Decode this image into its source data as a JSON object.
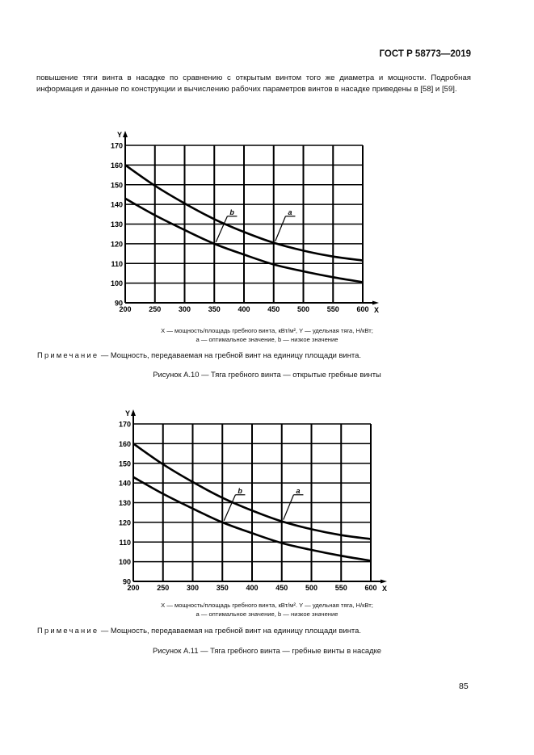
{
  "header": {
    "doc_code": "ГОСТ Р 58773—2019"
  },
  "body": {
    "paragraph": "повышение тяги винта в насадке по сравнению с открытым винтом того же диаметра и мощности. Подробная информация и данные по конструкции и вычислению рабочих параметров винтов в насадке приведены в [58] и [59]."
  },
  "figures": [
    {
      "legend_line1": "X — мощность/площадь гребного винта, кВт/м², Y — удельная тяга, Н/кВт;",
      "legend_line2": "a — оптимальное значение, b — низкое значение",
      "note_label": "Примечание",
      "note_text": " — Мощность, передаваемая на гребной винт на единицу площади винта.",
      "caption": "Рисунок А.10 — Тяга гребного винта — открытые гребные винты"
    },
    {
      "legend_line1": "X — мощность/площадь гребного винта, кВт/м². Y — удельная тяга, Н/кВт;",
      "legend_line2": "a — оптимальное значение, b — низкое значение",
      "note_label": "Примечание",
      "note_text": " — Мощность, передаваемая на гребной винт на единицу площади винта.",
      "caption": "Рисунок А.11 — Тяга гребного винта — гребные винты в насадке"
    }
  ],
  "chart_data": [
    {
      "type": "line",
      "xlabel": "X",
      "ylabel": "Y",
      "xlim": [
        200,
        600
      ],
      "ylim": [
        90,
        170
      ],
      "grid": true,
      "x_ticks": [
        "200",
        "250",
        "300",
        "350",
        "400",
        "450",
        "500",
        "550",
        "600"
      ],
      "y_ticks": [
        "90",
        "100",
        "110",
        "120",
        "130",
        "140",
        "150",
        "160",
        "170"
      ],
      "x": [
        200,
        250,
        300,
        350,
        400,
        450,
        500,
        550,
        600
      ],
      "series": [
        {
          "name": "a",
          "values": [
            160,
            149.5,
            140.5,
            132.5,
            126,
            120.5,
            116.5,
            113.5,
            111.5
          ]
        },
        {
          "name": "b",
          "values": [
            143,
            134.5,
            127,
            120,
            114.5,
            109.5,
            106,
            103,
            100.5
          ]
        }
      ]
    },
    {
      "type": "line",
      "xlabel": "X",
      "ylabel": "Y",
      "xlim": [
        200,
        600
      ],
      "ylim": [
        90,
        170
      ],
      "grid": true,
      "x_ticks": [
        "200",
        "250",
        "300",
        "350",
        "400",
        "450",
        "500",
        "550",
        "600"
      ],
      "y_ticks": [
        "90",
        "100",
        "110",
        "120",
        "130",
        "140",
        "150",
        "160",
        "170"
      ],
      "x": [
        200,
        250,
        300,
        350,
        400,
        450,
        500,
        550,
        600
      ],
      "series": [
        {
          "name": "a",
          "values": [
            160,
            149.5,
            140.5,
            132.5,
            126,
            120.5,
            116.5,
            113.5,
            111.5
          ]
        },
        {
          "name": "b",
          "values": [
            143,
            134.5,
            127,
            120,
            114.5,
            109.5,
            106,
            103,
            100.5
          ]
        }
      ]
    }
  ],
  "footer": {
    "page_number": "85"
  }
}
